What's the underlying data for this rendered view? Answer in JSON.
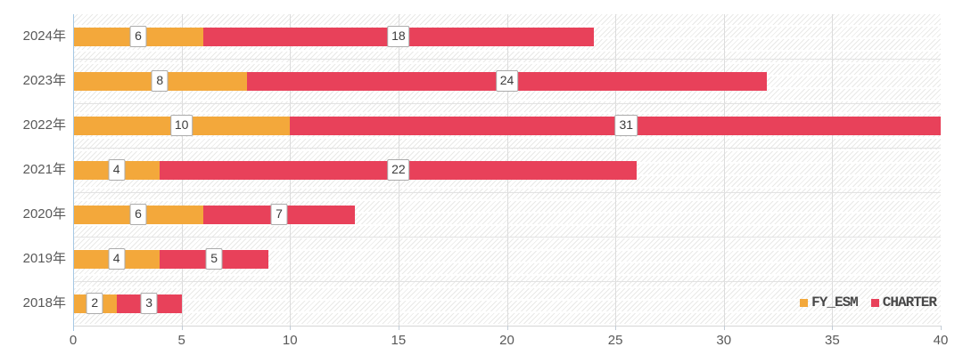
{
  "chart_data": {
    "type": "bar",
    "orientation": "horizontal",
    "stacked": true,
    "title": "",
    "categories": [
      "2024年",
      "2023年",
      "2022年",
      "2021年",
      "2020年",
      "2019年",
      "2018年"
    ],
    "series": [
      {
        "name": "FY_ESM",
        "color": "#F3A83B",
        "values": [
          6,
          8,
          10,
          4,
          6,
          4,
          2
        ]
      },
      {
        "name": "CHARTER",
        "color": "#E8415A",
        "values": [
          18,
          24,
          31,
          22,
          7,
          5,
          3
        ]
      }
    ],
    "totals": [
      24,
      32,
      41,
      26,
      13,
      9,
      5
    ],
    "xlim": [
      0,
      40
    ],
    "x_ticks": [
      0,
      5,
      10,
      15,
      20,
      25,
      30,
      35,
      40
    ],
    "value_labels_shown": true,
    "legend_position": "inside-bottom-right",
    "grid": true,
    "background_pattern": "diagonal-hatch",
    "axis_line_color": "#a6c8e4",
    "tick_label_color": "#595959"
  }
}
